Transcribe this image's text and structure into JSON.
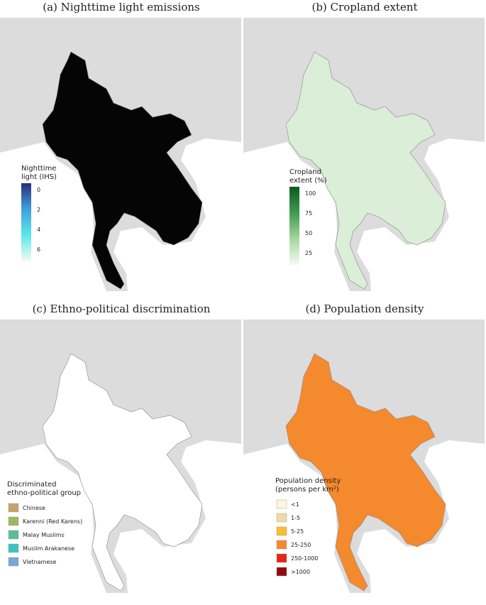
{
  "panels": [
    {
      "title": "(a) Nighttime light emissions",
      "legend": {
        "title": [
          "Nighttime",
          "light (IHS)"
        ],
        "ticks": [
          0,
          2,
          4,
          6
        ],
        "colors": [
          "#2b2e7a",
          "#3fa0e0",
          "#5ce8e8",
          "#f3fbf1"
        ]
      },
      "fill": "#050505"
    },
    {
      "title": "(b) Cropland extent",
      "legend": {
        "title": [
          "Cropland",
          "extent (%)"
        ],
        "ticks": [
          100,
          75,
          50,
          25
        ],
        "colors": [
          "#0b5a23",
          "#3f9a4f",
          "#a6d7a0",
          "#f5fbf3"
        ]
      },
      "fill": "#dbeed8"
    },
    {
      "title": "(c) Ethno-political discrimination",
      "legend": {
        "title": [
          "Discriminated",
          "ethno-political group"
        ],
        "items": [
          {
            "label": "Chinese",
            "color": "#c4a46a"
          },
          {
            "label": "Karenni (Red Karens)",
            "color": "#9bb863"
          },
          {
            "label": "Malay Muslims",
            "color": "#5bbf93"
          },
          {
            "label": "Muslim Arakanese",
            "color": "#3cc4c4"
          },
          {
            "label": "Vietnamese",
            "color": "#7ba6d6"
          }
        ]
      },
      "fill": "#ffffff"
    },
    {
      "title": "(d) Population density",
      "legend": {
        "title": [
          "Population density",
          "(persons per km²)"
        ],
        "items": [
          {
            "label": "<1",
            "color": "#fdf5dc"
          },
          {
            "label": "1-5",
            "color": "#f0d9a4"
          },
          {
            "label": "5-25",
            "color": "#fbbd30"
          },
          {
            "label": "25-250",
            "color": "#f5892e"
          },
          {
            "label": "250-1000",
            "color": "#e52515"
          },
          {
            "label": ">1000",
            "color": "#8f0d0d"
          }
        ]
      },
      "fill": "#f5892e"
    }
  ]
}
